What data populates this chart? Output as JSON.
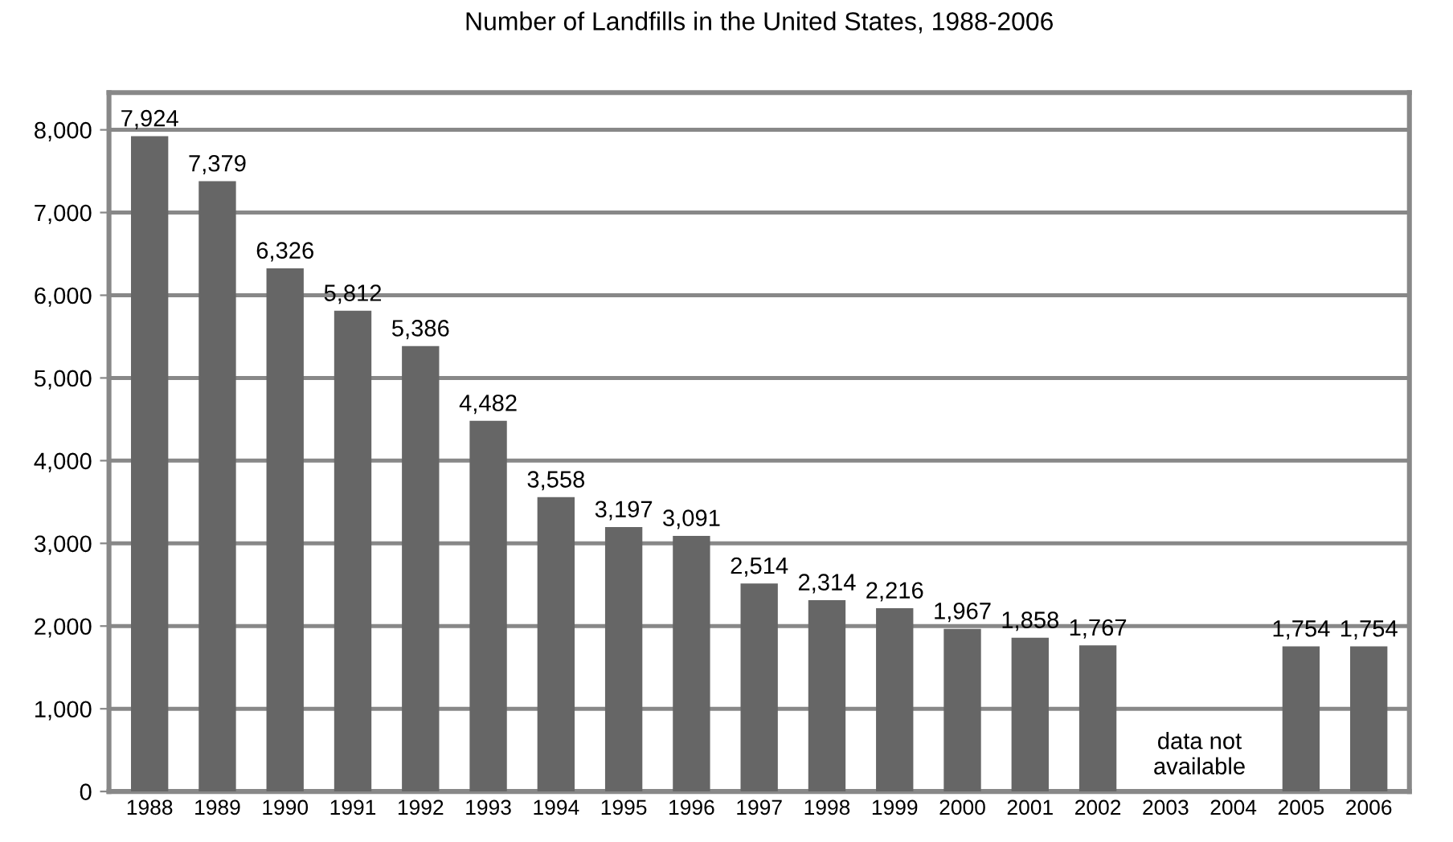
{
  "chart_data": {
    "type": "bar",
    "title": "Number of Landfills in the United States, 1988-2006",
    "categories": [
      "1988",
      "1989",
      "1990",
      "1991",
      "1992",
      "1993",
      "1994",
      "1995",
      "1996",
      "1997",
      "1998",
      "1999",
      "2000",
      "2001",
      "2002",
      "2003",
      "2004",
      "2005",
      "2006"
    ],
    "values": [
      7924,
      7379,
      6326,
      5812,
      5386,
      4482,
      3558,
      3197,
      3091,
      2514,
      2314,
      2216,
      1967,
      1858,
      1767,
      null,
      null,
      1754,
      1754
    ],
    "value_labels": [
      "7,924",
      "7,379",
      "6,326",
      "5,812",
      "5,386",
      "4,482",
      "3,558",
      "3,197",
      "3,091",
      "2,514",
      "2,314",
      "2,216",
      "1,967",
      "1,858",
      "1,767",
      null,
      null,
      "1,754",
      "1,754"
    ],
    "color": "#666666",
    "ylim": [
      0,
      8450
    ],
    "yticks": [
      0,
      {
        "value": 1000,
        "label": "1,000"
      },
      {
        "value": 2000,
        "label": "2,000"
      },
      {
        "value": 3000,
        "label": "3,000"
      },
      {
        "value": 4000,
        "label": "4,000"
      },
      {
        "value": 5000,
        "label": "5,000"
      },
      {
        "value": 6000,
        "label": "6,000"
      },
      {
        "value": 7000,
        "label": "7,000"
      },
      {
        "value": 8000,
        "label": "8,000"
      }
    ],
    "grid": "y",
    "annotations": [
      "data not\navailable"
    ]
  }
}
